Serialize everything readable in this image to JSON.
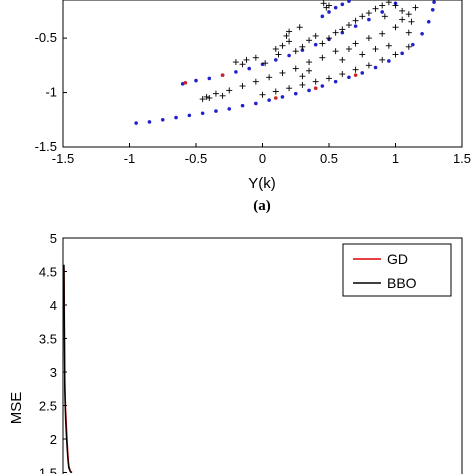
{
  "chart_data": [
    {
      "type": "scatter",
      "panel_label": "(a)",
      "xlabel": "Y(k)",
      "ylabel": "",
      "xlim": [
        -1.5,
        1.5
      ],
      "ylim": [
        -1.5,
        -0.15
      ],
      "xticks": [
        "-1.5",
        "-1",
        "-0.5",
        "0",
        "0.5",
        "1",
        "1.5"
      ],
      "xtick_values": [
        -1.5,
        -1,
        -0.5,
        0,
        0.5,
        1,
        1.5
      ],
      "yticks": [
        "-0.5",
        "-1",
        "-1.5"
      ],
      "ytick_values": [
        -0.5,
        -1,
        -1.5
      ],
      "series": [
        {
          "marker": "dot",
          "color": "#2222cc",
          "points": [
            [
              -0.95,
              -1.28
            ],
            [
              -0.85,
              -1.27
            ],
            [
              -0.75,
              -1.25
            ],
            [
              -0.65,
              -1.23
            ],
            [
              -0.55,
              -1.21
            ],
            [
              -0.45,
              -1.19
            ],
            [
              -0.35,
              -1.17
            ],
            [
              -0.25,
              -1.15
            ],
            [
              -0.15,
              -1.12
            ],
            [
              -0.05,
              -1.1
            ],
            [
              0.05,
              -1.07
            ],
            [
              0.15,
              -1.04
            ],
            [
              0.25,
              -1.01
            ],
            [
              0.35,
              -0.98
            ],
            [
              0.45,
              -0.94
            ],
            [
              0.55,
              -0.9
            ],
            [
              0.65,
              -0.86
            ],
            [
              0.75,
              -0.82
            ],
            [
              0.85,
              -0.77
            ],
            [
              0.95,
              -0.71
            ],
            [
              1.05,
              -0.64
            ],
            [
              1.13,
              -0.56
            ],
            [
              1.2,
              -0.46
            ],
            [
              1.25,
              -0.35
            ],
            [
              1.28,
              -0.24
            ],
            [
              1.29,
              -0.17
            ],
            [
              -0.6,
              -0.92
            ],
            [
              -0.5,
              -0.89
            ],
            [
              -0.4,
              -0.87
            ],
            [
              -0.3,
              -0.84
            ],
            [
              -0.2,
              -0.81
            ],
            [
              -0.1,
              -0.78
            ],
            [
              0.0,
              -0.74
            ],
            [
              0.1,
              -0.7
            ],
            [
              0.2,
              -0.66
            ],
            [
              0.3,
              -0.61
            ],
            [
              0.4,
              -0.56
            ],
            [
              0.5,
              -0.51
            ],
            [
              0.6,
              -0.45
            ],
            [
              0.7,
              -0.39
            ],
            [
              0.8,
              -0.33
            ],
            [
              0.9,
              -0.26
            ],
            [
              1.0,
              -0.18
            ],
            [
              0.45,
              -0.3
            ],
            [
              0.5,
              -0.26
            ],
            [
              0.55,
              -0.22
            ],
            [
              0.6,
              -0.19
            ],
            [
              0.65,
              -0.16
            ]
          ]
        },
        {
          "marker": "dot",
          "color": "#cc2222",
          "points": [
            [
              -0.58,
              -0.91
            ],
            [
              -0.3,
              -0.84
            ],
            [
              0.1,
              -1.05
            ],
            [
              0.4,
              -0.96
            ],
            [
              0.7,
              -0.84
            ]
          ]
        },
        {
          "marker": "plus",
          "color": "#000000",
          "points": [
            [
              -0.2,
              -0.72
            ],
            [
              -0.12,
              -0.7
            ],
            [
              -0.05,
              -0.68
            ],
            [
              0.02,
              -0.73
            ],
            [
              -0.15,
              -0.74
            ],
            [
              0.1,
              -0.6
            ],
            [
              0.15,
              -0.57
            ],
            [
              0.2,
              -0.53
            ],
            [
              0.12,
              -0.65
            ],
            [
              0.25,
              -0.62
            ],
            [
              0.3,
              -0.58
            ],
            [
              0.35,
              -0.52
            ],
            [
              0.4,
              -0.48
            ],
            [
              0.45,
              -0.55
            ],
            [
              0.5,
              -0.5
            ],
            [
              0.55,
              -0.45
            ],
            [
              0.6,
              -0.42
            ],
            [
              0.65,
              -0.38
            ],
            [
              0.7,
              -0.34
            ],
            [
              0.75,
              -0.3
            ],
            [
              0.8,
              -0.27
            ],
            [
              0.85,
              -0.23
            ],
            [
              0.9,
              -0.2
            ],
            [
              0.95,
              -0.17
            ],
            [
              0.7,
              -0.55
            ],
            [
              0.8,
              -0.5
            ],
            [
              0.9,
              -0.46
            ],
            [
              1.0,
              -0.4
            ],
            [
              1.05,
              -0.33
            ],
            [
              1.1,
              -0.28
            ],
            [
              1.15,
              -0.22
            ],
            [
              1.0,
              -0.2
            ],
            [
              0.85,
              -0.6
            ],
            [
              0.95,
              -0.57
            ],
            [
              1.1,
              -0.45
            ],
            [
              0.55,
              -0.62
            ],
            [
              0.65,
              -0.6
            ],
            [
              0.75,
              -0.65
            ],
            [
              0.6,
              -0.7
            ],
            [
              0.45,
              -0.68
            ],
            [
              0.35,
              -0.72
            ],
            [
              0.25,
              -0.78
            ],
            [
              0.15,
              -0.82
            ],
            [
              0.05,
              -0.86
            ],
            [
              -0.05,
              -0.9
            ],
            [
              -0.15,
              -0.94
            ],
            [
              -0.25,
              -0.98
            ],
            [
              -0.35,
              -1.01
            ],
            [
              -0.42,
              -1.04
            ],
            [
              -0.45,
              -1.06
            ],
            [
              0.0,
              -1.02
            ],
            [
              0.1,
              -0.99
            ],
            [
              0.2,
              -0.96
            ],
            [
              0.3,
              -0.93
            ],
            [
              0.4,
              -0.9
            ],
            [
              0.5,
              -0.87
            ],
            [
              0.6,
              -0.83
            ],
            [
              0.7,
              -0.79
            ],
            [
              0.8,
              -0.75
            ],
            [
              0.9,
              -0.7
            ],
            [
              1.0,
              -0.65
            ],
            [
              1.1,
              -0.58
            ],
            [
              0.48,
              -0.22
            ],
            [
              0.46,
              -0.18
            ],
            [
              0.5,
              -0.2
            ],
            [
              0.3,
              -0.85
            ],
            [
              0.35,
              -0.8
            ],
            [
              -0.3,
              -1.03
            ],
            [
              -0.4,
              -1.05
            ],
            [
              0.92,
              -0.3
            ],
            [
              1.05,
              -0.25
            ],
            [
              1.12,
              -0.35
            ],
            [
              0.2,
              -0.44
            ],
            [
              0.28,
              -0.4
            ],
            [
              0.18,
              -0.48
            ]
          ]
        }
      ]
    },
    {
      "type": "line",
      "xlabel": "",
      "ylabel": "MSE",
      "ylim": [
        1.5,
        5
      ],
      "yticks": [
        "5",
        "4.5",
        "4",
        "3.5",
        "3",
        "2.5",
        "2",
        "1.5"
      ],
      "ytick_values": [
        5,
        4.5,
        4,
        3.5,
        3,
        2.5,
        2,
        1.5
      ],
      "legend_position": "top-right",
      "series": [
        {
          "name": "GD",
          "color": "#dd0000",
          "x": [
            0,
            0.5,
            1,
            2,
            3,
            4,
            5,
            6,
            8,
            10
          ],
          "y": [
            4.55,
            3.8,
            2.9,
            2.45,
            2.2,
            1.95,
            1.75,
            1.6,
            1.52,
            1.5
          ]
        },
        {
          "name": "BBO",
          "color": "#000000",
          "x": [
            0,
            0.5,
            1,
            2,
            3,
            4,
            5,
            6,
            8,
            10
          ],
          "y": [
            4.6,
            3.5,
            2.7,
            2.3,
            2.05,
            1.85,
            1.68,
            1.57,
            1.51,
            1.5
          ]
        }
      ]
    }
  ]
}
